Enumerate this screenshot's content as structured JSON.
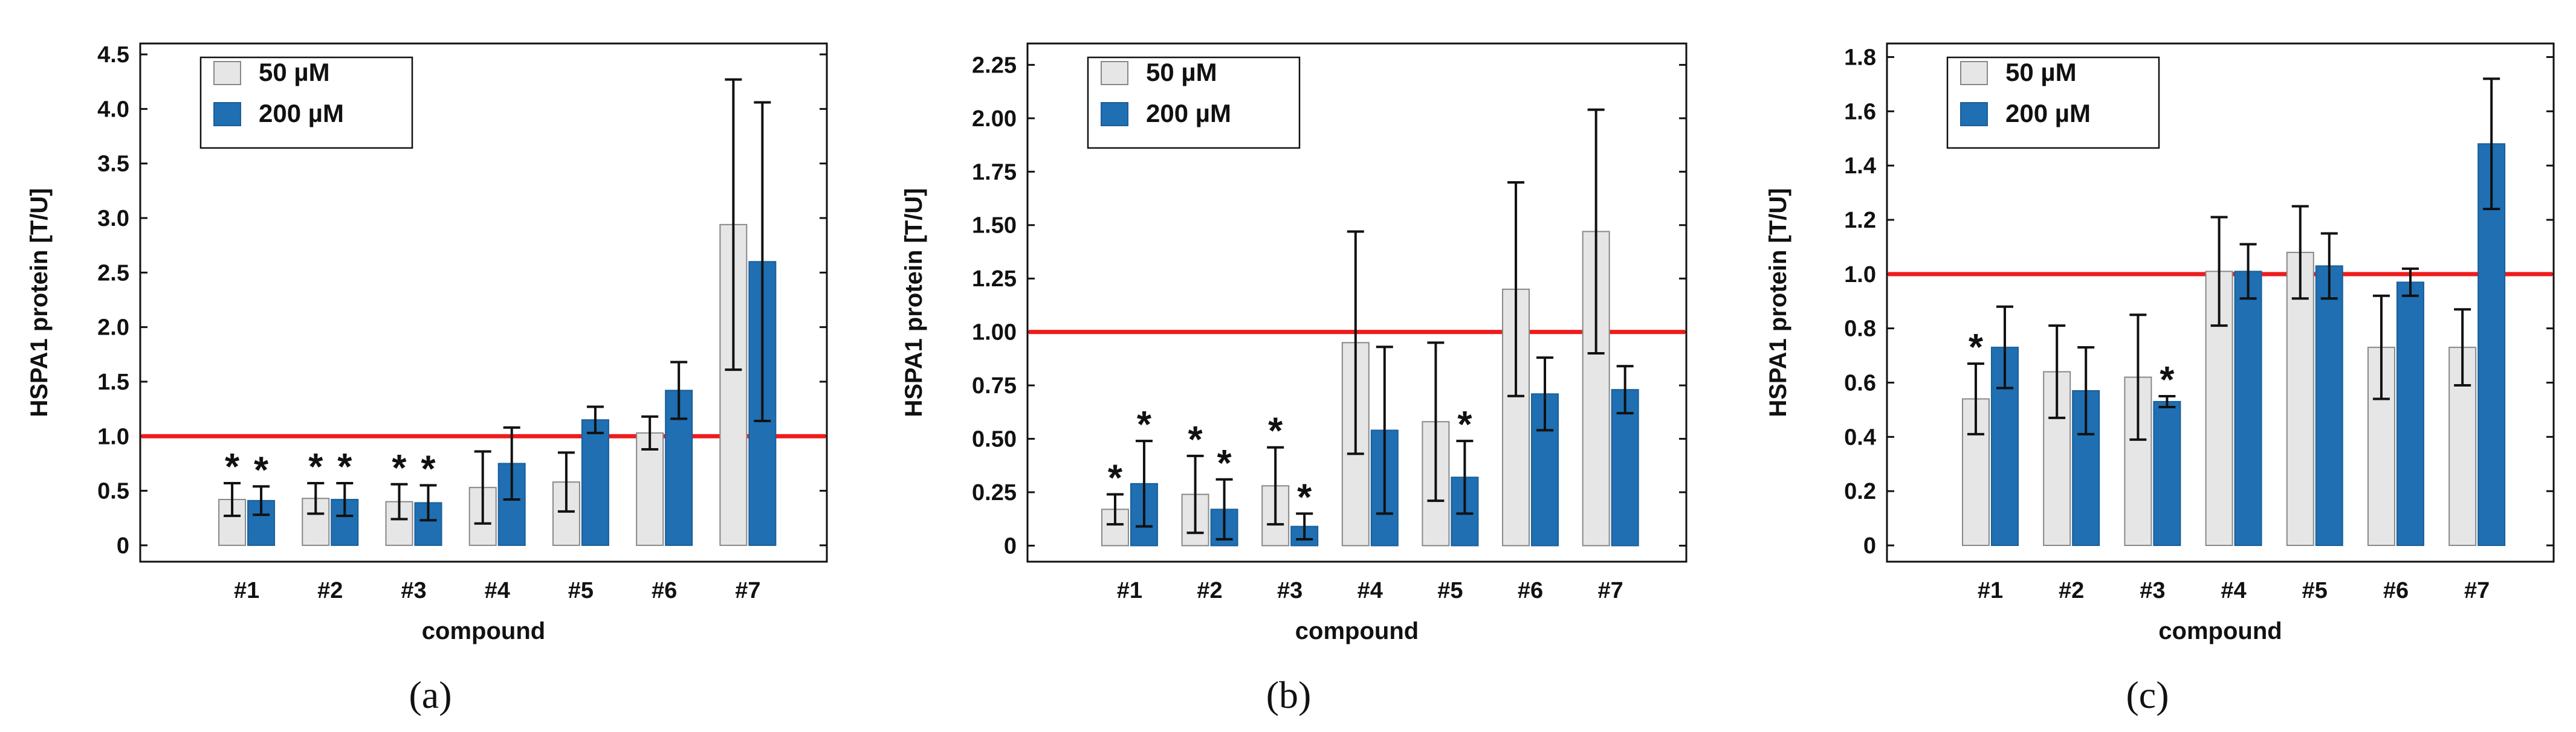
{
  "chart_data": [
    {
      "type": "bar",
      "panel_label": "(a)",
      "categories": [
        "#1",
        "#2",
        "#3",
        "#4",
        "#5",
        "#6",
        "#7"
      ],
      "xlabel": "compound",
      "ylabel": "HSPA1  protein [T/U]",
      "ylim": [
        -0.15,
        4.6
      ],
      "yticks": [
        "0",
        "0.5",
        "1.0",
        "1.5",
        "2.0",
        "2.5",
        "3.0",
        "3.5",
        "4.0",
        "4.5"
      ],
      "ytick_values": [
        0,
        0.5,
        1.0,
        1.5,
        2.0,
        2.5,
        3.0,
        3.5,
        4.0,
        4.5
      ],
      "reference_line": 1.0,
      "legend_position": "top-left",
      "series": [
        {
          "name": "50 µM",
          "color": "#e6e6e6",
          "values": [
            0.42,
            0.43,
            0.4,
            0.53,
            0.58,
            1.03,
            2.94
          ],
          "errors": [
            0.15,
            0.14,
            0.16,
            0.33,
            0.27,
            0.15,
            1.33
          ],
          "significant": [
            true,
            true,
            true,
            false,
            false,
            false,
            false
          ]
        },
        {
          "name": "200 µM",
          "color": "#1f6fb2",
          "values": [
            0.41,
            0.42,
            0.39,
            0.75,
            1.15,
            1.42,
            2.6
          ],
          "errors": [
            0.13,
            0.15,
            0.16,
            0.33,
            0.12,
            0.26,
            1.46
          ],
          "significant": [
            true,
            true,
            true,
            false,
            false,
            false,
            false
          ]
        }
      ]
    },
    {
      "type": "bar",
      "panel_label": "(b)",
      "categories": [
        "#1",
        "#2",
        "#3",
        "#4",
        "#5",
        "#6",
        "#7"
      ],
      "xlabel": "compound",
      "ylabel": "HSPA1  protein [T/U]",
      "ylim": [
        -0.075,
        2.35
      ],
      "yticks": [
        "0",
        "0.25",
        "0.50",
        "0.75",
        "1.00",
        "1.25",
        "1.50",
        "1.75",
        "2.00",
        "2.25"
      ],
      "ytick_values": [
        0,
        0.25,
        0.5,
        0.75,
        1.0,
        1.25,
        1.5,
        1.75,
        2.0,
        2.25
      ],
      "reference_line": 1.0,
      "legend_position": "top-left",
      "series": [
        {
          "name": "50 µM",
          "color": "#e6e6e6",
          "values": [
            0.17,
            0.24,
            0.28,
            0.95,
            0.58,
            1.2,
            1.47
          ],
          "errors": [
            0.07,
            0.18,
            0.18,
            0.52,
            0.37,
            0.5,
            0.57
          ],
          "significant": [
            true,
            true,
            true,
            false,
            false,
            false,
            false
          ]
        },
        {
          "name": "200 µM",
          "color": "#1f6fb2",
          "values": [
            0.29,
            0.17,
            0.09,
            0.54,
            0.32,
            0.71,
            0.73
          ],
          "errors": [
            0.2,
            0.14,
            0.06,
            0.39,
            0.17,
            0.17,
            0.11
          ],
          "significant": [
            true,
            true,
            true,
            false,
            true,
            false,
            false
          ]
        }
      ]
    },
    {
      "type": "bar",
      "panel_label": "(c)",
      "categories": [
        "#1",
        "#2",
        "#3",
        "#4",
        "#5",
        "#6",
        "#7"
      ],
      "xlabel": "compound",
      "ylabel": "HSPA1  protein [T/U]",
      "ylim": [
        -0.06,
        1.85
      ],
      "yticks": [
        "0",
        "0.2",
        "0.4",
        "0.6",
        "0.8",
        "1.0",
        "1.2",
        "1.4",
        "1.6",
        "1.8"
      ],
      "ytick_values": [
        0,
        0.2,
        0.4,
        0.6,
        0.8,
        1.0,
        1.2,
        1.4,
        1.6,
        1.8
      ],
      "reference_line": 1.0,
      "legend_position": "top-left",
      "series": [
        {
          "name": "50 µM",
          "color": "#e6e6e6",
          "values": [
            0.54,
            0.64,
            0.62,
            1.01,
            1.08,
            0.73,
            0.73
          ],
          "errors": [
            0.13,
            0.17,
            0.23,
            0.2,
            0.17,
            0.19,
            0.14
          ],
          "significant": [
            true,
            false,
            false,
            false,
            false,
            false,
            false
          ]
        },
        {
          "name": "200 µM",
          "color": "#1f6fb2",
          "values": [
            0.73,
            0.57,
            0.53,
            1.01,
            1.03,
            0.97,
            1.48
          ],
          "errors": [
            0.15,
            0.16,
            0.02,
            0.1,
            0.12,
            0.05,
            0.24
          ],
          "significant": [
            false,
            false,
            true,
            false,
            false,
            false,
            false
          ]
        }
      ]
    }
  ]
}
